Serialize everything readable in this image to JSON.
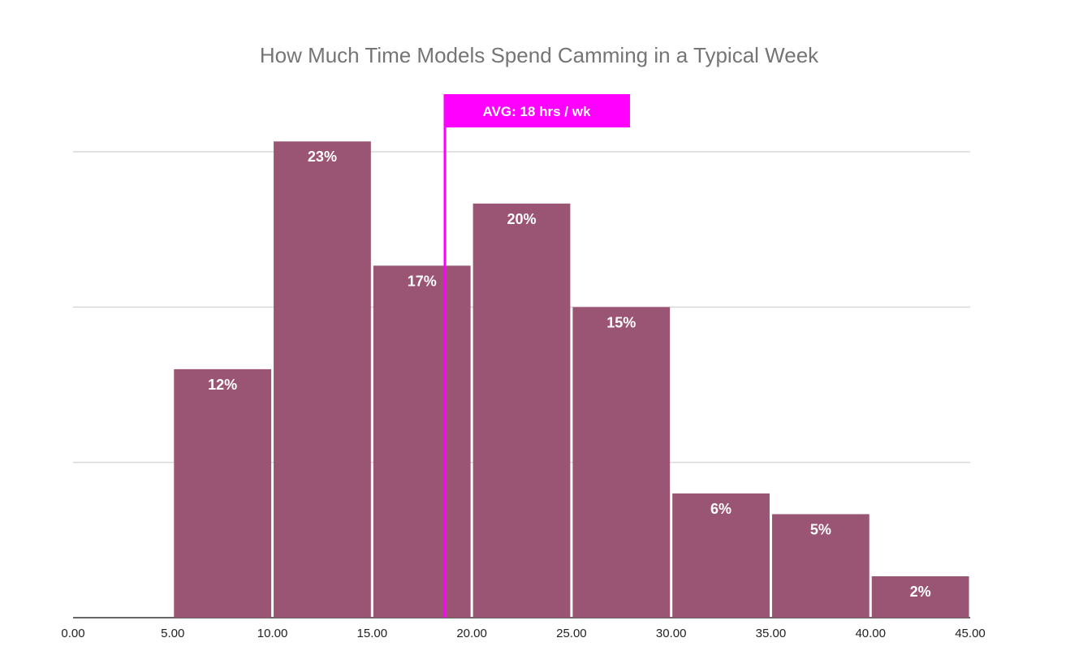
{
  "chart_data": {
    "type": "bar",
    "title": "How Much Time Models Spend Camming in a Typical Week",
    "xlabel": "",
    "ylabel": "",
    "bins": [
      [
        5,
        10
      ],
      [
        10,
        15
      ],
      [
        15,
        20
      ],
      [
        20,
        25
      ],
      [
        25,
        30
      ],
      [
        30,
        35
      ],
      [
        35,
        40
      ],
      [
        40,
        45
      ]
    ],
    "values": [
      12,
      23,
      17,
      20,
      15,
      6,
      5,
      2
    ],
    "data_labels": [
      "12%",
      "23%",
      "17%",
      "20%",
      "15%",
      "6%",
      "5%",
      "2%"
    ],
    "x_ticks": [
      "0.00",
      "5.00",
      "10.00",
      "15.00",
      "20.00",
      "25.00",
      "30.00",
      "35.00",
      "40.00",
      "45.00"
    ],
    "xlim": [
      0,
      45
    ],
    "ylim": [
      0,
      22.5
    ],
    "grid": true,
    "bar_color": "#9b5574",
    "annotation": {
      "label": "AVG: 18 hrs / wk",
      "x": 18.65,
      "color": "#ff00ff"
    }
  }
}
